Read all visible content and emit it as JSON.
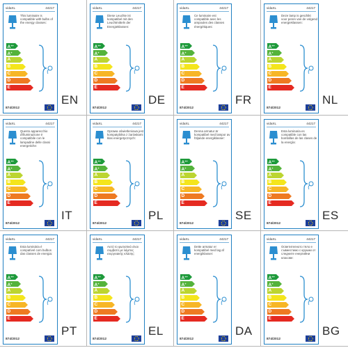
{
  "cards": [
    {
      "lang": "EN",
      "brand": "vidaXL",
      "code": "44217",
      "regulation": "874/2012",
      "text": "This luminaire is compatible with bulbs of the energy classes:"
    },
    {
      "lang": "DE",
      "brand": "vidaXL",
      "code": "44217",
      "regulation": "874/2012",
      "text": "Diese Leuchte ist kompatibel mit den Leuchtmitteln der Energieklassen:"
    },
    {
      "lang": "FR",
      "brand": "vidaXL",
      "code": "44217",
      "regulation": "874/2012",
      "text": "Ce luminaire est compatible avec les ampoules des classes énergétiques:"
    },
    {
      "lang": "NL",
      "brand": "vidaXL",
      "code": "44217",
      "regulation": "874/2012",
      "text": "Deze lamp is geschikt voor peren van de volgend energieklassen:"
    },
    {
      "lang": "IT",
      "brand": "vidaXL",
      "code": "44217",
      "regulation": "874/2012",
      "text": "Questo apparecchio d'illuminazione è compatibile con le lampadine delle classi energetiche:"
    },
    {
      "lang": "PL",
      "brand": "vidaXL",
      "code": "44217",
      "regulation": "874/2012",
      "text": "Oprawa oświetleniowa jest kompatybilna z żarówkami klas energetycznych:"
    },
    {
      "lang": "SE",
      "brand": "vidaXL",
      "code": "44217",
      "regulation": "874/2012",
      "text": "Denna armatur är kompatibel med lampor av följande energiklasser:"
    },
    {
      "lang": "ES",
      "brand": "vidaXL",
      "code": "44217",
      "regulation": "874/2012",
      "text": "Esta luminaria es compatible con las bombillas de las clases de la energía:"
    },
    {
      "lang": "PT",
      "brand": "vidaXL",
      "code": "44217",
      "regulation": "874/2012",
      "text": "Esta luminária é compatível com bulbos das classes de energia:"
    },
    {
      "lang": "EL",
      "brand": "vidaXL",
      "code": "44217",
      "regulation": "874/2012",
      "text": "Αυτό το φωτιστικό είναι συμβατό με λάμπες ενεργειακής κλάσης:"
    },
    {
      "lang": "DA",
      "brand": "vidaXL",
      "code": "44217",
      "regulation": "874/2012",
      "text": "Dette armatur er kompatibel med lag af energiklasser:"
    },
    {
      "lang": "BG",
      "brand": "vidaXL",
      "code": "44217",
      "regulation": "874/2012",
      "text": "Осветителното тяло е съвместимо с крушки от следните енергийни класове:"
    }
  ],
  "energy_classes": [
    {
      "label": "A",
      "sup": "++",
      "color": "#1e9a3b"
    },
    {
      "label": "A",
      "sup": "+",
      "color": "#54b33b"
    },
    {
      "label": "A",
      "sup": "",
      "color": "#bcd531"
    },
    {
      "label": "B",
      "sup": "",
      "color": "#f4e51c"
    },
    {
      "label": "C",
      "sup": "",
      "color": "#f7b626"
    },
    {
      "label": "D",
      "sup": "",
      "color": "#ee7a22"
    },
    {
      "label": "E",
      "sup": "",
      "color": "#e52a21"
    }
  ],
  "colors": {
    "border": "#1f7fc1",
    "eu_flag": "#1d3f9a",
    "eu_stars": "#f5d400"
  }
}
